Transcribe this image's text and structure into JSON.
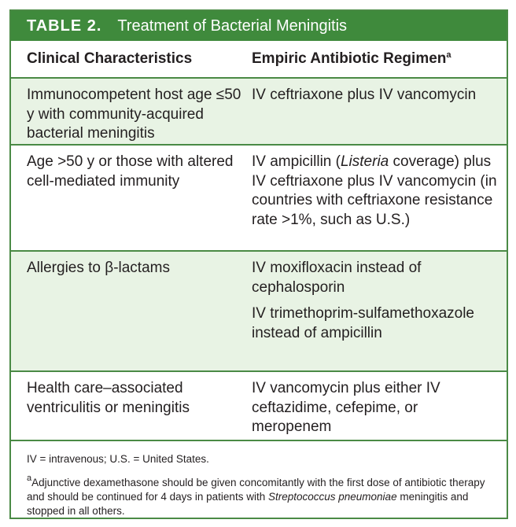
{
  "table": {
    "label": "TABLE 2.",
    "title": "Treatment of Bacterial Meningitis",
    "headers": {
      "col1": "Clinical Characteristics",
      "col2": "Empiric Antibiotic Regimen",
      "col2_superscript": "a"
    },
    "rows": [
      {
        "characteristic": "Immunocompetent host age ≤50 y with community-acquired bacterial meningitis",
        "regimen": "IV ceftriaxone plus IV vancomycin"
      },
      {
        "characteristic": "Age >50 y or those with altered cell-mediated immunity",
        "regimen_before_italic": "IV ampicillin (",
        "regimen_italic": "Listeria",
        "regimen_after_italic": " coverage) plus IV ceftriaxone plus IV vancomycin (in countries with ceftriaxone resistance rate >1%, such as U.S.)"
      },
      {
        "characteristic": "Allergies to β-lactams",
        "regimens": [
          "IV moxifloxacin instead of cephalosporin",
          "IV trimethoprim-sulfamethoxazole instead of ampicillin"
        ]
      },
      {
        "characteristic": "Health care–associated ventriculitis or meningitis",
        "regimen": "IV vancomycin plus either IV ceftazidime, cefepime, or meropenem"
      }
    ],
    "footnotes": {
      "abbreviations": "IV = intravenous; U.S. = United States.",
      "note_marker": "a",
      "note_text": "Adjunctive dexamethasone should be given concomitantly with the first dose of antibiotic therapy and should be continued for 4 days in patients with ",
      "note_italic": "Streptococcus pneumoniae",
      "note_end": " meningitis and stopped in all others."
    }
  },
  "colors": {
    "title_bar": "#3f8a3c",
    "border": "#4a8a45",
    "shaded_row": "#e8f3e4"
  }
}
